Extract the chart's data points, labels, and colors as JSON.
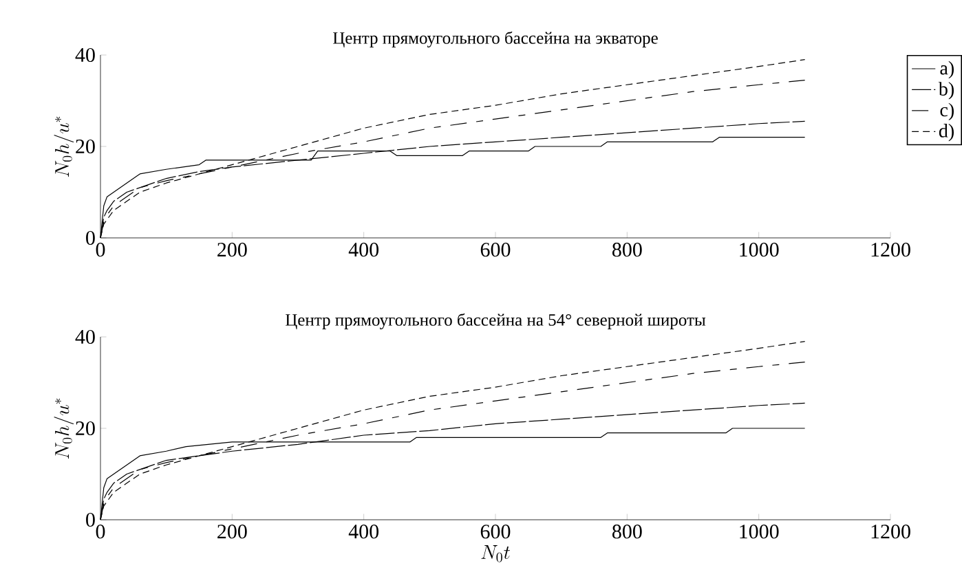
{
  "chart_data": [
    {
      "type": "line",
      "title": "Центр прямоугольного бассейна на экваторе",
      "ylabel": "N_0 h/u^*",
      "xlim": [
        0,
        1200
      ],
      "ylim": [
        0,
        40
      ],
      "xticks": [
        0,
        200,
        400,
        600,
        800,
        1000,
        1200
      ],
      "yticks": [
        0,
        20,
        40
      ],
      "grid": false,
      "legend": "top right",
      "series": [
        {
          "name": "a)",
          "color": "#000000",
          "line_style": "solid",
          "x": [
            0,
            5,
            10,
            20,
            40,
            60,
            100,
            150,
            160,
            320,
            330,
            440,
            450,
            550,
            560,
            650,
            660,
            760,
            770,
            930,
            940,
            1070
          ],
          "values": [
            0,
            7,
            9,
            10,
            12,
            14,
            15,
            16,
            17,
            17,
            19,
            19,
            18,
            18,
            19,
            19,
            20,
            20,
            21,
            21,
            22,
            22
          ]
        },
        {
          "name": "b)",
          "color": "#000000",
          "line_style": "longdash",
          "x": [
            0,
            5,
            10,
            20,
            40,
            60,
            100,
            150,
            200,
            300,
            400,
            500,
            600,
            700,
            800,
            900,
            1000,
            1070
          ],
          "values": [
            0,
            4.5,
            6,
            8,
            10,
            11,
            13,
            14.5,
            15.5,
            17,
            18.5,
            20,
            21,
            22,
            23,
            24,
            25,
            25.5
          ]
        },
        {
          "name": "c)",
          "color": "#000000",
          "line_style": "dashed",
          "x": [
            0,
            5,
            10,
            20,
            40,
            60,
            100,
            150,
            200,
            300,
            400,
            500,
            600,
            700,
            800,
            900,
            1000,
            1070
          ],
          "values": [
            0,
            3.5,
            5,
            7,
            9,
            11,
            12.5,
            14,
            15.5,
            18.5,
            21,
            24,
            26,
            28,
            30,
            32,
            33.5,
            34.5
          ]
        },
        {
          "name": "d)",
          "color": "#000000",
          "line_style": "shortdash",
          "x": [
            0,
            5,
            10,
            20,
            40,
            60,
            100,
            150,
            200,
            300,
            400,
            500,
            600,
            700,
            800,
            900,
            1000,
            1070
          ],
          "values": [
            0,
            3,
            4,
            6,
            8,
            10,
            12,
            14,
            16,
            20,
            24,
            27,
            29,
            31.5,
            33.5,
            35.5,
            37.5,
            39
          ]
        }
      ]
    },
    {
      "type": "line",
      "title": "Центр прямоугольного бассейна на 54° северной широты",
      "xlabel": "N_0 t",
      "ylabel": "N_0 h/u^*",
      "xlim": [
        0,
        1200
      ],
      "ylim": [
        0,
        40
      ],
      "xticks": [
        0,
        200,
        400,
        600,
        800,
        1000,
        1200
      ],
      "yticks": [
        0,
        20,
        40
      ],
      "grid": false,
      "series": [
        {
          "color": "#000000",
          "line_style": "solid",
          "x": [
            0,
            5,
            10,
            20,
            40,
            60,
            100,
            130,
            200,
            470,
            480,
            760,
            770,
            950,
            960,
            1070
          ],
          "values": [
            0,
            7,
            9,
            10,
            12,
            14,
            15,
            16,
            17,
            17,
            18,
            18,
            19,
            19,
            20,
            20
          ]
        },
        {
          "color": "#000000",
          "line_style": "longdash",
          "x": [
            0,
            5,
            10,
            20,
            40,
            60,
            100,
            150,
            200,
            300,
            400,
            500,
            600,
            700,
            800,
            900,
            1000,
            1070
          ],
          "values": [
            0,
            4.5,
            6,
            8,
            10,
            11,
            13,
            14,
            15,
            16.5,
            18.5,
            19.5,
            21,
            22,
            23,
            24,
            25,
            25.5
          ]
        },
        {
          "color": "#000000",
          "line_style": "dashed",
          "x": [
            0,
            5,
            10,
            20,
            40,
            60,
            100,
            150,
            200,
            300,
            400,
            500,
            600,
            700,
            800,
            900,
            1000,
            1070
          ],
          "values": [
            0,
            3.5,
            5,
            7,
            9,
            11,
            12.5,
            14,
            15.5,
            18.5,
            21,
            24,
            26,
            28,
            30,
            32,
            33.5,
            34.5
          ]
        },
        {
          "color": "#000000",
          "line_style": "shortdash",
          "x": [
            0,
            5,
            10,
            20,
            40,
            60,
            100,
            150,
            200,
            300,
            400,
            500,
            600,
            700,
            800,
            900,
            1000,
            1070
          ],
          "values": [
            0,
            3,
            4,
            6,
            8,
            10,
            12,
            14,
            16,
            20,
            24,
            27,
            29,
            31.5,
            33.5,
            35.5,
            37.5,
            39
          ]
        }
      ]
    }
  ]
}
